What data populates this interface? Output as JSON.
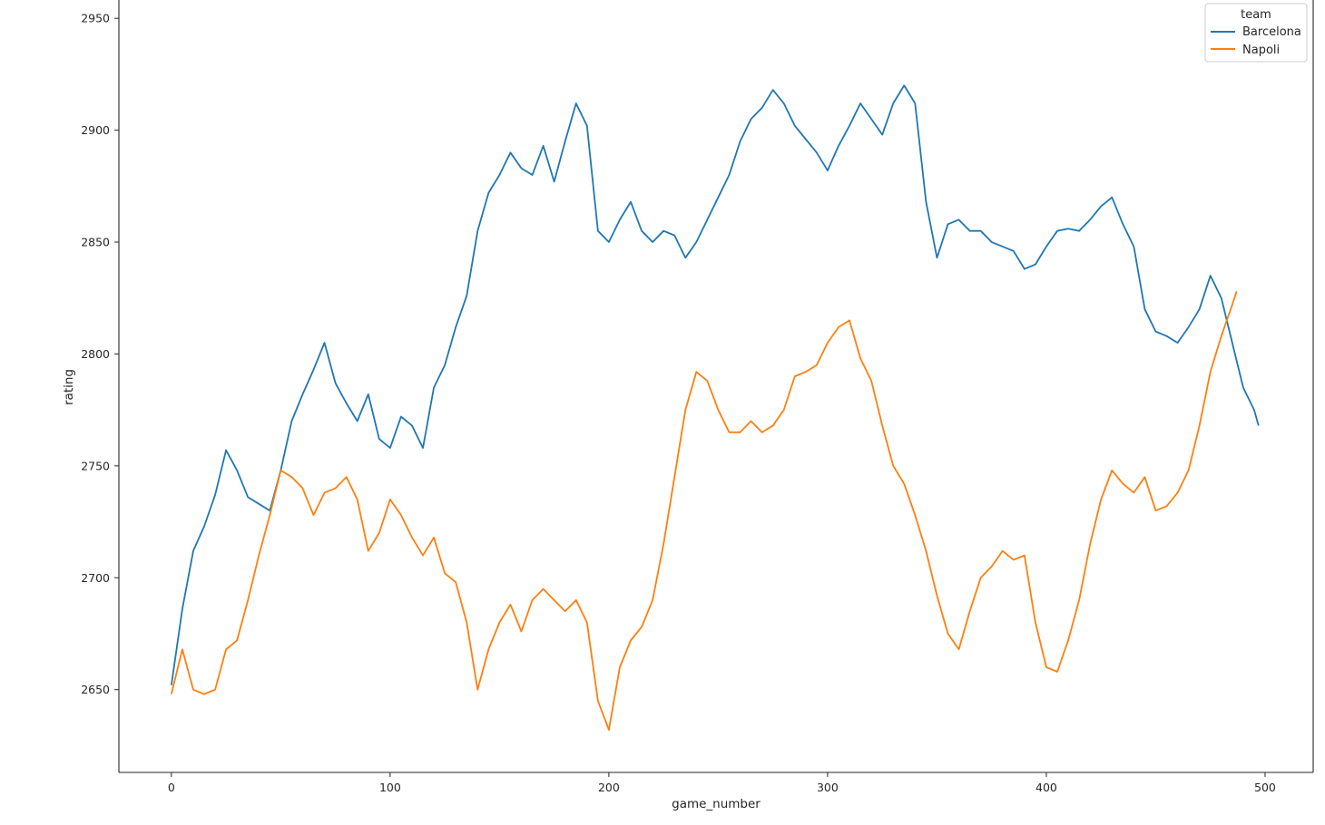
{
  "chart_data": {
    "type": "line",
    "xlabel": "game_number",
    "ylabel": "rating",
    "xlim": [
      -24,
      522
    ],
    "ylim": [
      2613,
      2959
    ],
    "xticks": [
      0,
      100,
      200,
      300,
      400,
      500
    ],
    "yticks": [
      2650,
      2700,
      2750,
      2800,
      2850,
      2900,
      2950
    ],
    "grid": false,
    "legend": {
      "title": "team",
      "position": "top-right",
      "entries": [
        "Barcelona",
        "Napoli"
      ]
    },
    "series": [
      {
        "name": "Barcelona",
        "color": "#1f77b4",
        "points": [
          [
            0,
            2652
          ],
          [
            5,
            2686
          ],
          [
            10,
            2712
          ],
          [
            15,
            2723
          ],
          [
            20,
            2737
          ],
          [
            25,
            2757
          ],
          [
            30,
            2748
          ],
          [
            35,
            2736
          ],
          [
            40,
            2733
          ],
          [
            45,
            2730
          ],
          [
            50,
            2748
          ],
          [
            55,
            2770
          ],
          [
            60,
            2782
          ],
          [
            65,
            2793
          ],
          [
            70,
            2805
          ],
          [
            75,
            2787
          ],
          [
            80,
            2778
          ],
          [
            85,
            2770
          ],
          [
            90,
            2782
          ],
          [
            95,
            2762
          ],
          [
            100,
            2758
          ],
          [
            105,
            2772
          ],
          [
            110,
            2768
          ],
          [
            115,
            2758
          ],
          [
            120,
            2785
          ],
          [
            125,
            2795
          ],
          [
            130,
            2812
          ],
          [
            135,
            2826
          ],
          [
            140,
            2855
          ],
          [
            145,
            2872
          ],
          [
            150,
            2880
          ],
          [
            155,
            2890
          ],
          [
            160,
            2883
          ],
          [
            165,
            2880
          ],
          [
            170,
            2893
          ],
          [
            175,
            2877
          ],
          [
            180,
            2895
          ],
          [
            185,
            2912
          ],
          [
            190,
            2902
          ],
          [
            195,
            2855
          ],
          [
            200,
            2850
          ],
          [
            205,
            2860
          ],
          [
            210,
            2868
          ],
          [
            215,
            2855
          ],
          [
            220,
            2850
          ],
          [
            225,
            2855
          ],
          [
            230,
            2853
          ],
          [
            235,
            2843
          ],
          [
            240,
            2850
          ],
          [
            245,
            2860
          ],
          [
            250,
            2870
          ],
          [
            255,
            2880
          ],
          [
            260,
            2895
          ],
          [
            265,
            2905
          ],
          [
            270,
            2910
          ],
          [
            275,
            2918
          ],
          [
            280,
            2912
          ],
          [
            285,
            2902
          ],
          [
            290,
            2896
          ],
          [
            295,
            2890
          ],
          [
            300,
            2882
          ],
          [
            305,
            2893
          ],
          [
            310,
            2902
          ],
          [
            315,
            2912
          ],
          [
            320,
            2905
          ],
          [
            325,
            2898
          ],
          [
            330,
            2912
          ],
          [
            335,
            2920
          ],
          [
            340,
            2912
          ],
          [
            345,
            2868
          ],
          [
            350,
            2843
          ],
          [
            355,
            2858
          ],
          [
            360,
            2860
          ],
          [
            365,
            2855
          ],
          [
            370,
            2855
          ],
          [
            375,
            2850
          ],
          [
            380,
            2848
          ],
          [
            385,
            2846
          ],
          [
            390,
            2838
          ],
          [
            395,
            2840
          ],
          [
            400,
            2848
          ],
          [
            405,
            2855
          ],
          [
            410,
            2856
          ],
          [
            415,
            2855
          ],
          [
            420,
            2860
          ],
          [
            425,
            2866
          ],
          [
            430,
            2870
          ],
          [
            435,
            2858
          ],
          [
            440,
            2848
          ],
          [
            445,
            2820
          ],
          [
            450,
            2810
          ],
          [
            455,
            2808
          ],
          [
            460,
            2805
          ],
          [
            465,
            2812
          ],
          [
            470,
            2820
          ],
          [
            475,
            2835
          ],
          [
            480,
            2825
          ],
          [
            485,
            2805
          ],
          [
            490,
            2785
          ],
          [
            495,
            2775
          ],
          [
            497,
            2768
          ]
        ]
      },
      {
        "name": "Napoli",
        "color": "#ff7f0e",
        "points": [
          [
            0,
            2648
          ],
          [
            5,
            2668
          ],
          [
            10,
            2650
          ],
          [
            15,
            2648
          ],
          [
            20,
            2650
          ],
          [
            25,
            2668
          ],
          [
            30,
            2672
          ],
          [
            35,
            2690
          ],
          [
            40,
            2710
          ],
          [
            45,
            2728
          ],
          [
            50,
            2748
          ],
          [
            55,
            2745
          ],
          [
            60,
            2740
          ],
          [
            65,
            2728
          ],
          [
            70,
            2738
          ],
          [
            75,
            2740
          ],
          [
            80,
            2745
          ],
          [
            85,
            2735
          ],
          [
            90,
            2712
          ],
          [
            95,
            2720
          ],
          [
            100,
            2735
          ],
          [
            105,
            2728
          ],
          [
            110,
            2718
          ],
          [
            115,
            2710
          ],
          [
            120,
            2718
          ],
          [
            125,
            2702
          ],
          [
            130,
            2698
          ],
          [
            135,
            2680
          ],
          [
            140,
            2650
          ],
          [
            145,
            2668
          ],
          [
            150,
            2680
          ],
          [
            155,
            2688
          ],
          [
            160,
            2676
          ],
          [
            165,
            2690
          ],
          [
            170,
            2695
          ],
          [
            175,
            2690
          ],
          [
            180,
            2685
          ],
          [
            185,
            2690
          ],
          [
            190,
            2680
          ],
          [
            195,
            2645
          ],
          [
            200,
            2632
          ],
          [
            205,
            2660
          ],
          [
            210,
            2672
          ],
          [
            215,
            2678
          ],
          [
            220,
            2690
          ],
          [
            225,
            2715
          ],
          [
            230,
            2745
          ],
          [
            235,
            2775
          ],
          [
            240,
            2792
          ],
          [
            245,
            2788
          ],
          [
            250,
            2775
          ],
          [
            255,
            2765
          ],
          [
            260,
            2765
          ],
          [
            265,
            2770
          ],
          [
            270,
            2765
          ],
          [
            275,
            2768
          ],
          [
            280,
            2775
          ],
          [
            285,
            2790
          ],
          [
            290,
            2792
          ],
          [
            295,
            2795
          ],
          [
            300,
            2805
          ],
          [
            305,
            2812
          ],
          [
            310,
            2815
          ],
          [
            315,
            2798
          ],
          [
            320,
            2788
          ],
          [
            325,
            2768
          ],
          [
            330,
            2750
          ],
          [
            335,
            2742
          ],
          [
            340,
            2728
          ],
          [
            345,
            2712
          ],
          [
            350,
            2692
          ],
          [
            355,
            2675
          ],
          [
            360,
            2668
          ],
          [
            365,
            2685
          ],
          [
            370,
            2700
          ],
          [
            375,
            2705
          ],
          [
            380,
            2712
          ],
          [
            385,
            2708
          ],
          [
            390,
            2710
          ],
          [
            395,
            2680
          ],
          [
            400,
            2660
          ],
          [
            405,
            2658
          ],
          [
            410,
            2672
          ],
          [
            415,
            2690
          ],
          [
            420,
            2715
          ],
          [
            425,
            2735
          ],
          [
            430,
            2748
          ],
          [
            435,
            2742
          ],
          [
            440,
            2738
          ],
          [
            445,
            2745
          ],
          [
            450,
            2730
          ],
          [
            455,
            2732
          ],
          [
            460,
            2738
          ],
          [
            465,
            2748
          ],
          [
            470,
            2768
          ],
          [
            475,
            2792
          ],
          [
            480,
            2808
          ],
          [
            485,
            2822
          ],
          [
            487,
            2828
          ]
        ]
      }
    ]
  }
}
